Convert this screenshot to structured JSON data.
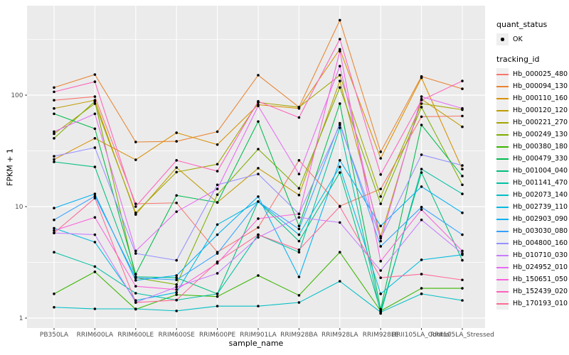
{
  "colors": {
    "panel_bg": "#EBEBEB",
    "grid": "#FFFFFF",
    "tick_label": "#4D4D4D",
    "tick_mark": "#333333",
    "point": "#000000",
    "legend_key_bg": "#EFEFEF"
  },
  "chart_data": {
    "type": "line",
    "title": "",
    "xlabel": "sample_name",
    "ylabel": "FPKM + 1",
    "y_scale": "log10",
    "y_ticks": [
      1,
      10,
      100
    ],
    "y_minor_ticks": [
      3.1623,
      31.623,
      316.23
    ],
    "ylim": [
      0.81,
      634
    ],
    "grid": "on",
    "legend_position": "right",
    "categories": [
      "PB350LA",
      "RRIM600LA",
      "RRIM600LE",
      "RRIM600SE",
      "RRIM600PE",
      "RRIM901LA",
      "RRIM928BA",
      "RRIM928LA",
      "RRIM928LE",
      "RRII105LA_Control",
      "RRII105LA_Stressed"
    ],
    "legend": {
      "quant_status_title": "quant_status",
      "ok_label": "OK",
      "tracking_title": "tracking_id"
    },
    "quant_status_all_points": "OK",
    "series": [
      {
        "tracking_id": "Hb_000025_480",
        "color": "#F8766D",
        "values": [
          90,
          97,
          10.6,
          10.8,
          3.9,
          6.5,
          26,
          10.1,
          14.4,
          64,
          65
        ]
      },
      {
        "tracking_id": "Hb_000094_130",
        "color": "#EA8331",
        "values": [
          117,
          153,
          38,
          38.5,
          47,
          151,
          78,
          470,
          31,
          147,
          114
        ]
      },
      {
        "tracking_id": "Hb_000110_160",
        "color": "#D89000",
        "values": [
          26.5,
          41,
          26.3,
          46,
          36,
          82,
          76,
          258,
          27.1,
          143,
          21.7
        ]
      },
      {
        "tracking_id": "Hb_000120_120",
        "color": "#C09B00",
        "values": [
          76,
          90,
          8.5,
          22.4,
          10.9,
          22.1,
          12.7,
          134,
          5.4,
          92,
          52
        ]
      },
      {
        "tracking_id": "Hb_000221_270",
        "color": "#A3A500",
        "values": [
          45,
          84,
          8.8,
          20.4,
          24,
          86,
          78,
          151,
          12.3,
          84,
          74
        ]
      },
      {
        "tracking_id": "Hb_000249_130",
        "color": "#7CAE00",
        "values": [
          41,
          88,
          2.3,
          2.0,
          12.8,
          32.8,
          14.6,
          117,
          10.6,
          78,
          15.7
        ]
      },
      {
        "tracking_id": "Hb_000380_180",
        "color": "#39B600",
        "values": [
          1.65,
          2.6,
          1.2,
          1.62,
          1.56,
          2.41,
          1.6,
          3.9,
          1.16,
          1.85,
          1.85
        ]
      },
      {
        "tracking_id": "Hb_000479_330",
        "color": "#00BB4E",
        "values": [
          68,
          50,
          2.48,
          12.6,
          10.9,
          58,
          6.7,
          84,
          1.2,
          54,
          18.8
        ]
      },
      {
        "tracking_id": "Hb_001004_040",
        "color": "#00BF7D",
        "values": [
          25.2,
          22.7,
          2.35,
          2.3,
          1.65,
          11.1,
          4.9,
          20.2,
          1.16,
          20.2,
          3.3
        ]
      },
      {
        "tracking_id": "Hb_001141_470",
        "color": "#00C1A3",
        "values": [
          3.9,
          2.9,
          1.67,
          1.45,
          1.65,
          5.6,
          3.9,
          51,
          1.1,
          21.7,
          13.0
        ]
      },
      {
        "tracking_id": "Hb_002073_140",
        "color": "#00BFC4",
        "values": [
          1.25,
          1.21,
          1.21,
          1.16,
          1.28,
          1.28,
          1.38,
          2.14,
          1.13,
          1.65,
          1.44
        ]
      },
      {
        "tracking_id": "Hb_002739_110",
        "color": "#00BAE0",
        "values": [
          6.4,
          4.8,
          1.44,
          1.7,
          6.9,
          11.1,
          5.6,
          22.7,
          1.65,
          3.33,
          3.7
        ]
      },
      {
        "tracking_id": "Hb_002903_090",
        "color": "#00B0F6",
        "values": [
          9.7,
          13.0,
          2.18,
          2.41,
          5.6,
          12.3,
          2.34,
          26,
          6.7,
          15.1,
          8.8
        ]
      },
      {
        "tracking_id": "Hb_003030_080",
        "color": "#35A2FF",
        "values": [
          7.6,
          12.4,
          2.3,
          2.2,
          3.8,
          11.1,
          6.3,
          56,
          4.4,
          9.9,
          5.6
        ]
      },
      {
        "tracking_id": "Hb_004800_160",
        "color": "#9590FF",
        "values": [
          28.3,
          33.8,
          3.8,
          3.3,
          15.7,
          19.6,
          8.6,
          54,
          5.2,
          29.2,
          23.4
        ]
      },
      {
        "tracking_id": "Hb_010710_030",
        "color": "#C77CFF",
        "values": [
          5.8,
          5.6,
          1.38,
          1.9,
          2.52,
          5.3,
          8.0,
          7.2,
          2.67,
          7.6,
          3.8
        ]
      },
      {
        "tracking_id": "Hb_024952_010",
        "color": "#E76BF3",
        "values": [
          47,
          68,
          4.0,
          9.0,
          14.4,
          80,
          19.6,
          182,
          4.9,
          97,
          76
        ]
      },
      {
        "tracking_id": "Hb_150651_050",
        "color": "#FA62DB",
        "values": [
          6.1,
          8.0,
          1.93,
          1.8,
          3.1,
          7.8,
          8.6,
          248,
          3.24,
          9.4,
          4.0
        ]
      },
      {
        "tracking_id": "Hb_152439_020",
        "color": "#FF62BC",
        "values": [
          107,
          132,
          10.0,
          26,
          20.8,
          88,
          63,
          318,
          19.4,
          90,
          134
        ]
      },
      {
        "tracking_id": "Hb_170193_010",
        "color": "#FF6A98",
        "values": [
          5.8,
          11.9,
          1.38,
          1.45,
          3.2,
          5.6,
          4.1,
          10.0,
          2.3,
          2.48,
          2.2
        ]
      }
    ]
  }
}
